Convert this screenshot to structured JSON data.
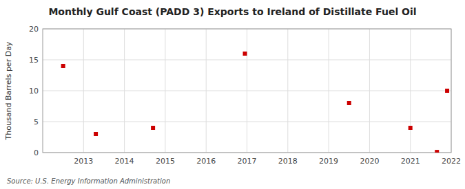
{
  "chart_data": {
    "type": "scatter",
    "title": "Monthly Gulf Coast (PADD 3) Exports to Ireland of Distillate Fuel Oil",
    "ylabel": "Thousand Barrels per Day",
    "source": "Source: U.S. Energy Information Administration",
    "x": [
      2012.5,
      2013.3,
      2014.7,
      2016.95,
      2019.5,
      2021.0,
      2021.65,
      2021.9
    ],
    "values": [
      14.0,
      3.0,
      4.0,
      16.0,
      8.0,
      4.0,
      0.1,
      10.0
    ],
    "color": "#cc0000",
    "marker": "square",
    "xlim": [
      2012.0,
      2022.0
    ],
    "ylim": [
      0,
      20
    ],
    "xticks": [
      2013,
      2014,
      2015,
      2016,
      2017,
      2018,
      2019,
      2020,
      2021,
      2022
    ],
    "yticks": [
      0,
      5,
      10,
      15,
      20
    ],
    "grid": true
  }
}
